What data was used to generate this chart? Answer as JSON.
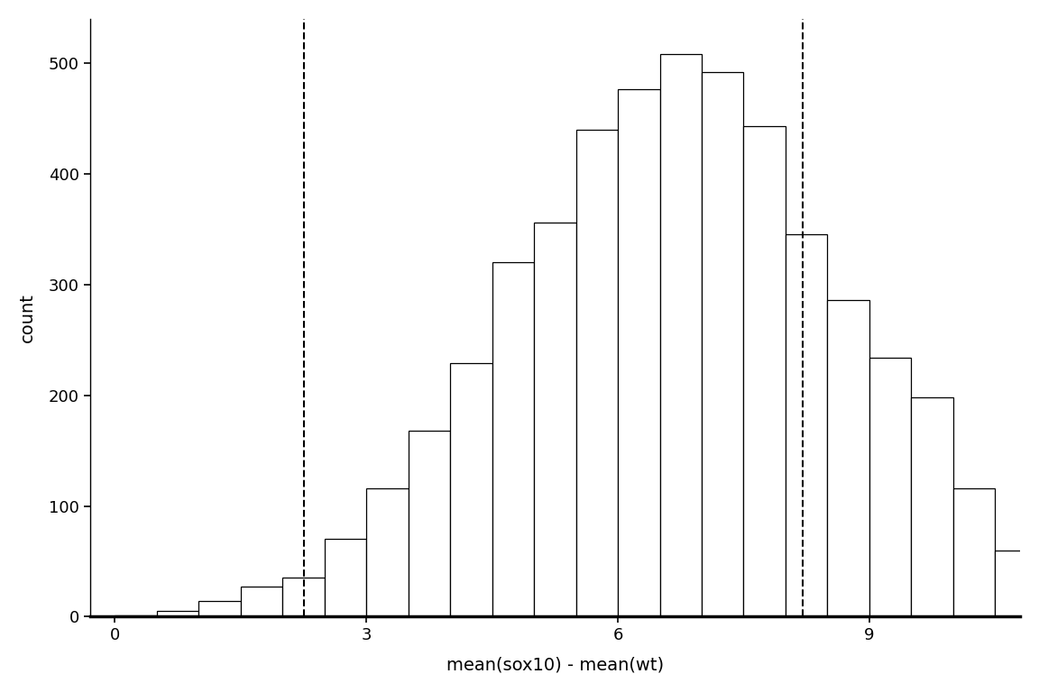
{
  "title": "",
  "xlabel": "mean(sox10) - mean(wt)",
  "ylabel": "count",
  "background_color": "#ffffff",
  "bar_color": "#ffffff",
  "bar_edgecolor": "#000000",
  "dashed_line_color": "#000000",
  "dashed_line_x": [
    2.25,
    8.2
  ],
  "xlim": [
    -0.3,
    10.8
  ],
  "ylim": [
    0,
    540
  ],
  "xticks": [
    0,
    3,
    6,
    9
  ],
  "yticks": [
    0,
    100,
    200,
    300,
    400,
    500
  ],
  "bin_left_edges": [
    0.0,
    0.5,
    1.0,
    1.5,
    2.0,
    2.5,
    3.0,
    3.5,
    4.0,
    4.5,
    5.0,
    5.5,
    6.0,
    6.5,
    7.0,
    7.5,
    8.0,
    8.5,
    9.0,
    9.5,
    10.0,
    10.5
  ],
  "bin_counts": [
    1,
    5,
    14,
    27,
    35,
    70,
    116,
    168,
    229,
    320,
    356,
    440,
    476,
    508,
    492,
    443,
    345,
    286,
    234,
    198,
    116,
    60
  ],
  "bin_width": 0.5
}
